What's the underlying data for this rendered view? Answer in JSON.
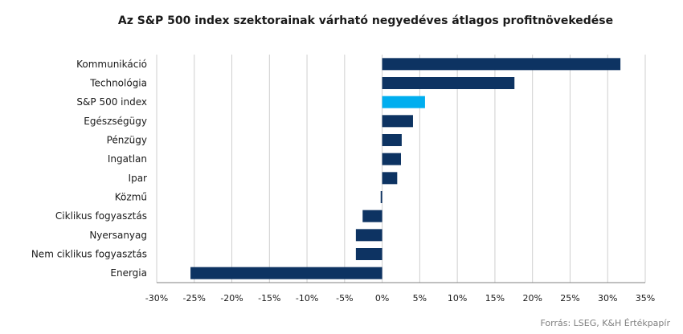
{
  "chart_data": {
    "type": "bar",
    "orientation": "horizontal",
    "title": "Az S&P 500 index szektorainak várható negyedéves átlagos profitnövekedése",
    "categories": [
      "Kommunikáció",
      "Technológia",
      "S&P 500 index",
      "Egészségügy",
      "Pénzügy",
      "Ingatlan",
      "Ipar",
      "Közmű",
      "Ciklikus fogyasztás",
      "Nyersanyag",
      "Nem ciklikus fogyasztás",
      "Energia"
    ],
    "values": [
      31.7,
      17.6,
      5.7,
      4.1,
      2.6,
      2.5,
      2.0,
      -0.2,
      -2.6,
      -3.5,
      -3.5,
      -25.5
    ],
    "xlim": [
      -30,
      35
    ],
    "xticks": [
      -30,
      -25,
      -20,
      -15,
      -10,
      -5,
      0,
      5,
      10,
      15,
      20,
      25,
      30,
      35
    ],
    "xtick_labels": [
      "-30%",
      "-25%",
      "-20%",
      "-15%",
      "-10%",
      "-5%",
      "0%",
      "5%",
      "10%",
      "15%",
      "20%",
      "25%",
      "30%",
      "35%"
    ],
    "grid": true,
    "legend": "none",
    "colors": {
      "default": "#0d3362",
      "highlight": "#00aeef",
      "grid": "#cfcfcf"
    },
    "highlight_category": "S&P 500 index"
  },
  "source": "Forrás: LSEG, K&H Értékpapír"
}
